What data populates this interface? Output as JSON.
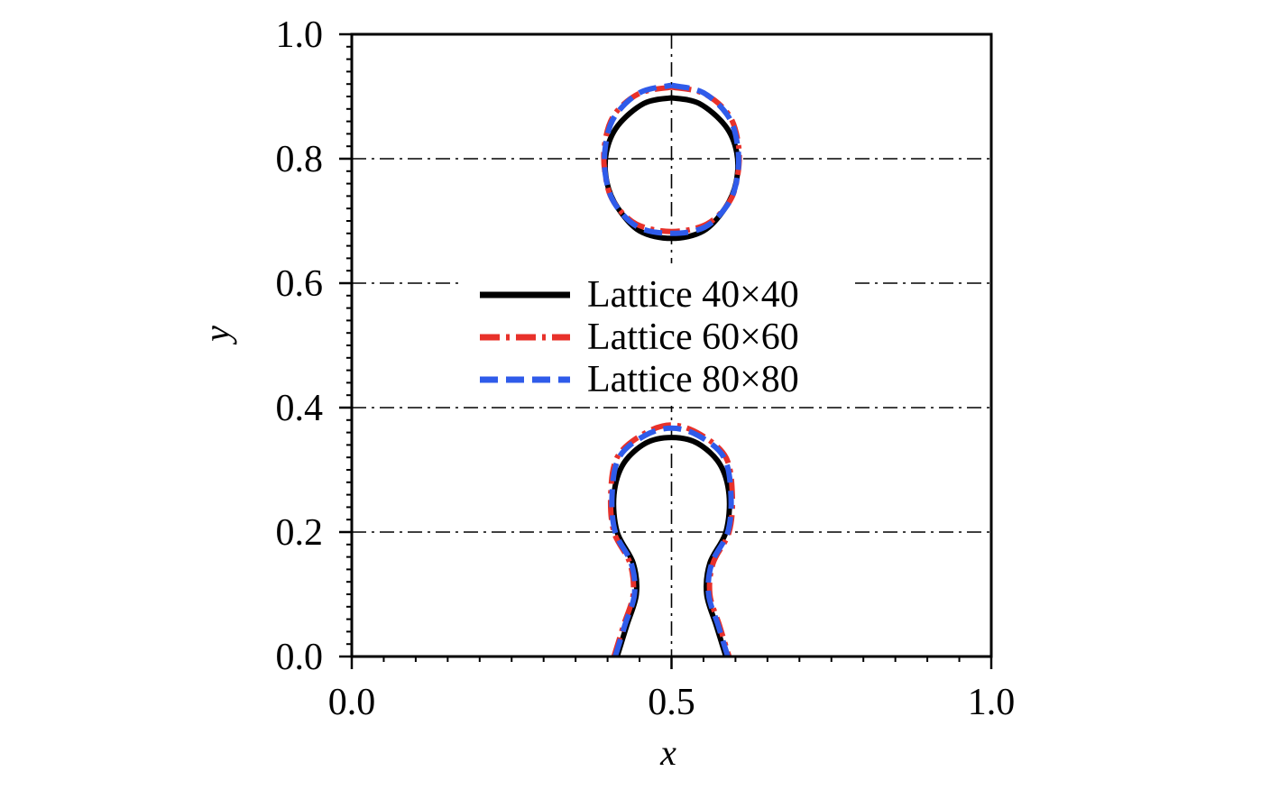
{
  "chart_data": {
    "type": "line",
    "title": "",
    "xlabel": "x",
    "ylabel": "y",
    "xlim": [
      0.0,
      1.0
    ],
    "ylim": [
      0.0,
      1.0
    ],
    "xticks": [
      0.0,
      0.5,
      1.0
    ],
    "xtick_labels": [
      "0.0",
      "0.5",
      "1.0"
    ],
    "yticks": [
      0.0,
      0.2,
      0.4,
      0.6,
      0.8,
      1.0
    ],
    "ytick_labels": [
      "0.0",
      "0.2",
      "0.4",
      "0.6",
      "0.8",
      "1.0"
    ],
    "grid": "dash-dot at x=0.5 and y=0.2, 0.4, 0.6, 0.8",
    "legend_position": "center",
    "series": [
      {
        "name": "Lattice 40×40",
        "color": "#000000",
        "style": "solid",
        "contours": [
          [
            [
              0.5,
              0.898
            ],
            [
              0.543,
              0.889
            ],
            [
              0.584,
              0.853
            ],
            [
              0.602,
              0.81
            ],
            [
              0.601,
              0.762
            ],
            [
              0.584,
              0.721
            ],
            [
              0.55,
              0.684
            ],
            [
              0.5,
              0.672
            ],
            [
              0.45,
              0.684
            ],
            [
              0.416,
              0.721
            ],
            [
              0.399,
              0.762
            ],
            [
              0.398,
              0.81
            ],
            [
              0.416,
              0.853
            ],
            [
              0.457,
              0.889
            ],
            [
              0.5,
              0.898
            ]
          ],
          [
            [
              0.415,
              0.0
            ],
            [
              0.43,
              0.05
            ],
            [
              0.445,
              0.1
            ],
            [
              0.44,
              0.15
            ],
            [
              0.415,
              0.2
            ],
            [
              0.41,
              0.26
            ],
            [
              0.425,
              0.31
            ],
            [
              0.46,
              0.343
            ],
            [
              0.5,
              0.352
            ],
            [
              0.54,
              0.343
            ],
            [
              0.575,
              0.31
            ],
            [
              0.59,
              0.26
            ],
            [
              0.585,
              0.2
            ],
            [
              0.56,
              0.15
            ],
            [
              0.555,
              0.1
            ],
            [
              0.57,
              0.05
            ],
            [
              0.585,
              0.0
            ]
          ]
        ]
      },
      {
        "name": "Lattice 60×60",
        "color": "#e8312a",
        "style": "dash-dot",
        "contours": [
          [
            [
              0.5,
              0.915
            ],
            [
              0.55,
              0.905
            ],
            [
              0.59,
              0.87
            ],
            [
              0.605,
              0.82
            ],
            [
              0.603,
              0.77
            ],
            [
              0.59,
              0.73
            ],
            [
              0.555,
              0.695
            ],
            [
              0.5,
              0.683
            ],
            [
              0.445,
              0.695
            ],
            [
              0.41,
              0.73
            ],
            [
              0.397,
              0.77
            ],
            [
              0.395,
              0.82
            ],
            [
              0.41,
              0.87
            ],
            [
              0.45,
              0.905
            ],
            [
              0.5,
              0.915
            ]
          ],
          [
            [
              0.41,
              0.0
            ],
            [
              0.425,
              0.05
            ],
            [
              0.44,
              0.1
            ],
            [
              0.435,
              0.15
            ],
            [
              0.41,
              0.2
            ],
            [
              0.405,
              0.26
            ],
            [
              0.415,
              0.32
            ],
            [
              0.455,
              0.357
            ],
            [
              0.5,
              0.372
            ],
            [
              0.545,
              0.357
            ],
            [
              0.585,
              0.32
            ],
            [
              0.595,
              0.26
            ],
            [
              0.59,
              0.2
            ],
            [
              0.565,
              0.15
            ],
            [
              0.56,
              0.1
            ],
            [
              0.575,
              0.05
            ],
            [
              0.59,
              0.0
            ]
          ]
        ]
      },
      {
        "name": "Lattice 80×80",
        "color": "#2f5bea",
        "style": "dashed",
        "contours": [
          [
            [
              0.5,
              0.918
            ],
            [
              0.55,
              0.906
            ],
            [
              0.59,
              0.866
            ],
            [
              0.604,
              0.815
            ],
            [
              0.602,
              0.765
            ],
            [
              0.587,
              0.725
            ],
            [
              0.552,
              0.69
            ],
            [
              0.5,
              0.68
            ],
            [
              0.448,
              0.69
            ],
            [
              0.413,
              0.725
            ],
            [
              0.398,
              0.765
            ],
            [
              0.396,
              0.815
            ],
            [
              0.41,
              0.866
            ],
            [
              0.45,
              0.906
            ],
            [
              0.5,
              0.918
            ]
          ],
          [
            [
              0.412,
              0.0
            ],
            [
              0.427,
              0.05
            ],
            [
              0.442,
              0.1
            ],
            [
              0.437,
              0.15
            ],
            [
              0.412,
              0.2
            ],
            [
              0.407,
              0.26
            ],
            [
              0.418,
              0.32
            ],
            [
              0.458,
              0.355
            ],
            [
              0.5,
              0.367
            ],
            [
              0.542,
              0.355
            ],
            [
              0.582,
              0.32
            ],
            [
              0.593,
              0.26
            ],
            [
              0.588,
              0.2
            ],
            [
              0.563,
              0.15
            ],
            [
              0.558,
              0.1
            ],
            [
              0.573,
              0.05
            ],
            [
              0.588,
              0.0
            ]
          ]
        ]
      }
    ]
  }
}
